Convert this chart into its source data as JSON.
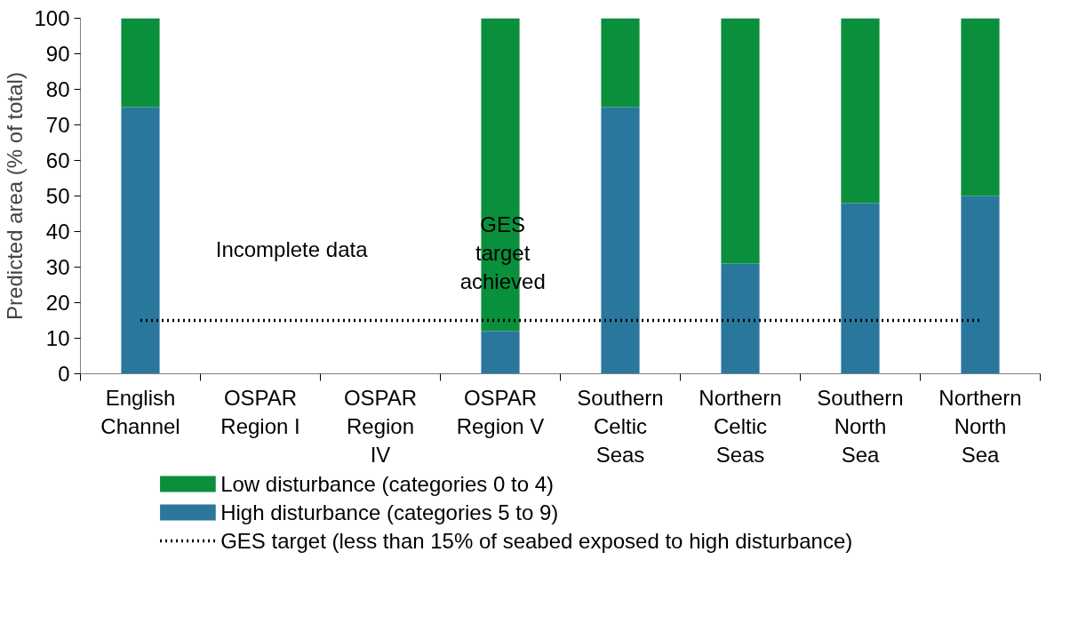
{
  "chart_data": {
    "type": "bar",
    "stacked": true,
    "ylabel": "Predicted area (% of total)",
    "categories": [
      "English Channel",
      "OSPAR Region I",
      "OSPAR Region IV",
      "OSPAR Region V",
      "Southern Celtic Seas",
      "Northern Celtic Seas",
      "Southern North Sea",
      "Northern North Sea"
    ],
    "series": [
      {
        "name": "High disturbance (categories 5 to 9)",
        "color": "#2a779e",
        "values": [
          75,
          null,
          null,
          12,
          75,
          31,
          48,
          50
        ]
      },
      {
        "name": "Low disturbance (categories 0 to 4)",
        "color": "#0a8f3c",
        "values": [
          25,
          null,
          null,
          88,
          25,
          69,
          52,
          50
        ]
      }
    ],
    "ylim": [
      0,
      100
    ],
    "yticks": [
      0,
      10,
      20,
      30,
      40,
      50,
      60,
      70,
      80,
      90,
      100
    ],
    "grid": false,
    "legend": "bottom",
    "ref_lines": [
      {
        "axis": "y",
        "value": 15,
        "label": "GES target (less than 15% of seabed exposed to high disturbance)",
        "color": "#000000",
        "line_style": "dotted"
      }
    ],
    "annotations": [
      "Incomplete data",
      "GES target achieved"
    ]
  }
}
